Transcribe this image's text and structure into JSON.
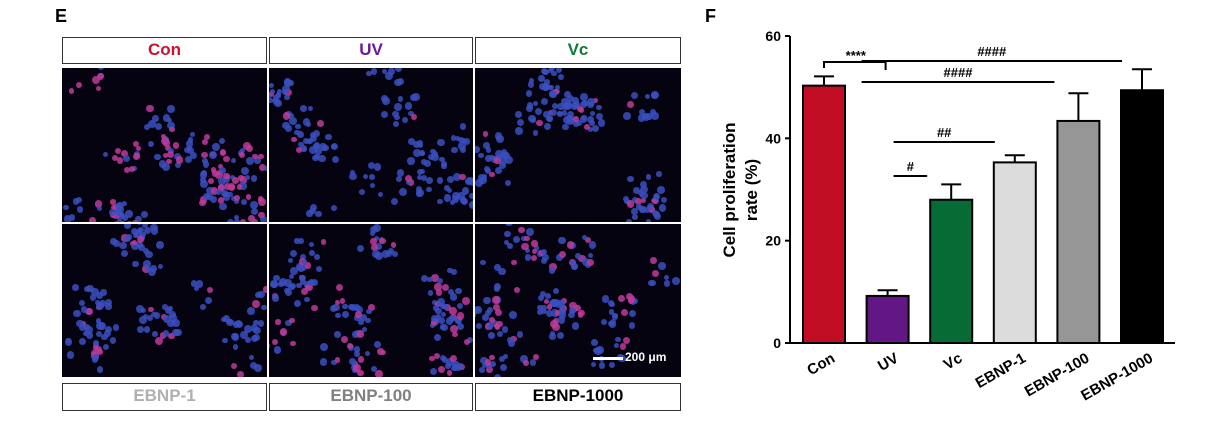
{
  "panel_e": {
    "label": "E",
    "top_labels": [
      {
        "text": "Con",
        "color": "#d0102a"
      },
      {
        "text": "UV",
        "color": "#6a1a9a"
      },
      {
        "text": "Vc",
        "color": "#127a3a"
      }
    ],
    "bottom_labels": [
      {
        "text": "EBNP-1",
        "color": "#b0b0b0"
      },
      {
        "text": "EBNP-100",
        "color": "#808080"
      },
      {
        "text": "EBNP-1000",
        "color": "#000000"
      }
    ],
    "scale_bar": "200 μm"
  },
  "panel_f": {
    "label": "F"
  },
  "chart_data": {
    "type": "bar",
    "categories": [
      "Con",
      "UV",
      "Vc",
      "EBNP-1",
      "EBNP-100",
      "EBNP-1000"
    ],
    "values": [
      50.3,
      9.2,
      28.0,
      35.3,
      43.4,
      49.4
    ],
    "errors": [
      1.8,
      1.1,
      3.0,
      1.4,
      5.4,
      4.1
    ],
    "colors": [
      "#c10d24",
      "#621785",
      "#066b35",
      "#dcdcdc",
      "#969696",
      "#000000"
    ],
    "ylabel": "Cell proliferation rate (%)",
    "ylim": [
      0,
      60
    ],
    "yticks": [
      "0",
      "20",
      "40",
      "60"
    ],
    "grid": false,
    "significance": [
      {
        "from": "Con",
        "to": "UV",
        "label": "****"
      },
      {
        "from": "UV",
        "to": "Vc",
        "label": "#"
      },
      {
        "from": "UV",
        "to": "EBNP-1",
        "label": "##"
      },
      {
        "from": "UV",
        "to": "EBNP-100",
        "label": "####"
      },
      {
        "from": "UV",
        "to": "EBNP-1000",
        "label": "####"
      }
    ]
  }
}
